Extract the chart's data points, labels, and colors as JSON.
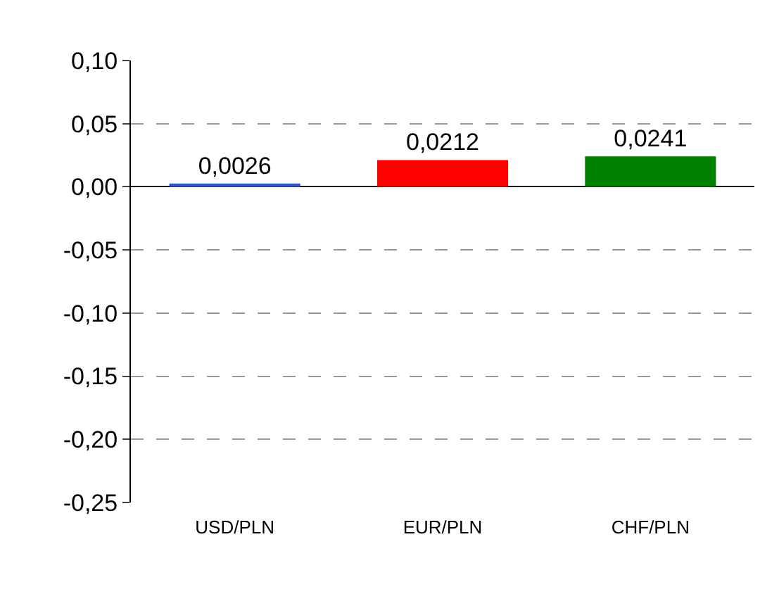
{
  "chart_data": {
    "type": "bar",
    "categories": [
      "USD/PLN",
      "EUR/PLN",
      "CHF/PLN"
    ],
    "values": [
      0.0026,
      0.0212,
      0.0241
    ],
    "colors": [
      "#3355cc",
      "#ff0000",
      "#008000"
    ],
    "value_labels": [
      "0,0026",
      "0,0212",
      "0,0241"
    ],
    "ylim": [
      -0.25,
      0.1
    ],
    "yticks": [
      {
        "value": -0.25,
        "label": "-0,25"
      },
      {
        "value": -0.2,
        "label": "-0,20"
      },
      {
        "value": -0.15,
        "label": "-0,15"
      },
      {
        "value": -0.1,
        "label": "-0,10"
      },
      {
        "value": -0.05,
        "label": "-0,05"
      },
      {
        "value": 0,
        "label": "0,00"
      },
      {
        "value": 0.05,
        "label": "0,05"
      },
      {
        "value": 0.1,
        "label": "0,10"
      }
    ],
    "grid": "y"
  }
}
